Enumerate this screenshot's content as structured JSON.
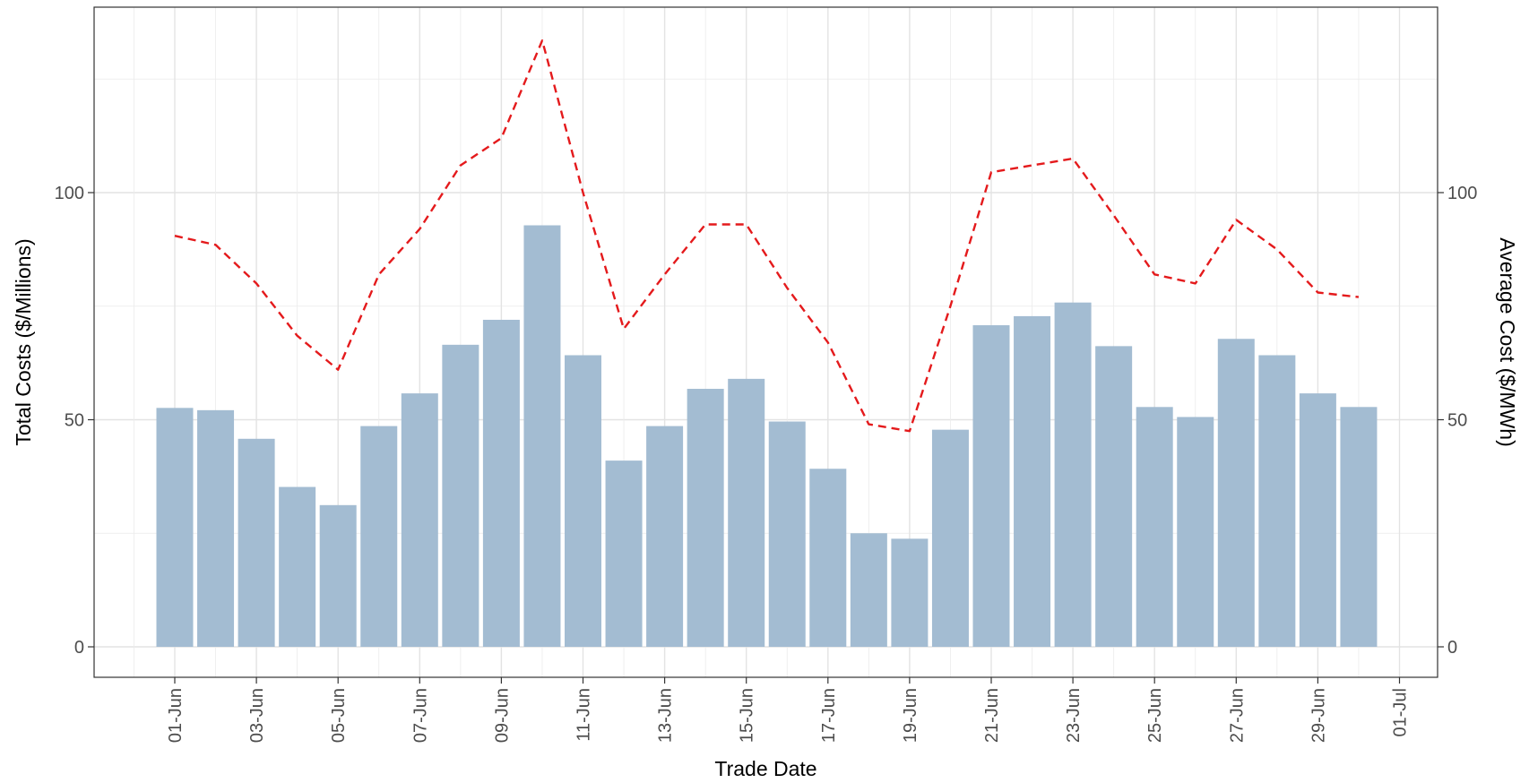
{
  "chart_data": {
    "type": "bar",
    "title": "",
    "xlabel": "Trade Date",
    "ylabel": "Total Costs ($/Millions)",
    "y2label": "Average Cost ($/MWh)",
    "ylim": [
      -7,
      135
    ],
    "y2lim": [
      -7,
      135
    ],
    "yticks": [
      0,
      50,
      100
    ],
    "y2ticks": [
      0,
      50,
      100
    ],
    "xticks": [
      "01-Jun",
      "03-Jun",
      "05-Jun",
      "07-Jun",
      "09-Jun",
      "11-Jun",
      "13-Jun",
      "15-Jun",
      "17-Jun",
      "19-Jun",
      "21-Jun",
      "23-Jun",
      "25-Jun",
      "27-Jun",
      "29-Jun",
      "01-Jul"
    ],
    "grid": true,
    "legend": "none",
    "categories": [
      "01-Jun",
      "02-Jun",
      "03-Jun",
      "04-Jun",
      "05-Jun",
      "06-Jun",
      "07-Jun",
      "08-Jun",
      "09-Jun",
      "10-Jun",
      "11-Jun",
      "12-Jun",
      "13-Jun",
      "14-Jun",
      "15-Jun",
      "16-Jun",
      "17-Jun",
      "18-Jun",
      "19-Jun",
      "20-Jun",
      "21-Jun",
      "22-Jun",
      "23-Jun",
      "24-Jun",
      "25-Jun",
      "26-Jun",
      "27-Jun",
      "28-Jun",
      "29-Jun",
      "30-Jun"
    ],
    "series": [
      {
        "axis": "left",
        "type": "bar",
        "color": "#a3bcd2",
        "values": [
          52.6,
          52.1,
          45.8,
          35.2,
          31.2,
          48.6,
          55.8,
          66.5,
          72.0,
          92.8,
          64.2,
          41.0,
          48.6,
          56.8,
          59.0,
          49.6,
          39.2,
          25.0,
          23.8,
          47.8,
          70.8,
          72.8,
          75.8,
          66.2,
          52.8,
          50.6,
          67.8,
          64.2,
          55.8,
          52.8
        ]
      },
      {
        "axis": "right",
        "type": "line",
        "color": "#e41a1c",
        "dash": "dashed",
        "values": [
          90.5,
          88.5,
          80.0,
          68.5,
          61.0,
          82.0,
          92.0,
          106.0,
          112.0,
          133.5,
          100.0,
          70.0,
          82.0,
          93.0,
          93.0,
          79.0,
          67.0,
          49.0,
          47.5,
          75.0,
          104.5,
          106.0,
          107.5,
          95.0,
          82.0,
          80.0,
          94.0,
          87.5,
          78.0,
          77.0
        ]
      }
    ]
  }
}
